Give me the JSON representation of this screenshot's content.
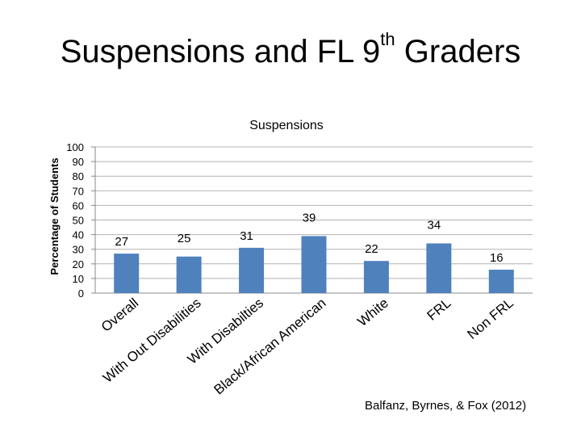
{
  "slide": {
    "title_main": "Suspensions and FL 9",
    "title_sup": "th",
    "title_end": " Graders",
    "source": "Balfanz, Byrnes, & Fox (2012)"
  },
  "chart_data": {
    "type": "bar",
    "title": "Suspensions",
    "ylabel": "Percentage of Students",
    "xlabel": "",
    "ylim": [
      0,
      100
    ],
    "yticks": [
      0,
      10,
      20,
      30,
      40,
      50,
      60,
      70,
      80,
      90,
      100
    ],
    "grid": true,
    "legend": "none",
    "color": "#4f81bd",
    "categories": [
      "Overall",
      "With Out Disabilities",
      "With Disabilties",
      "Black/African American",
      "White",
      "FRL",
      "Non FRL"
    ],
    "values": [
      27,
      25,
      31,
      39,
      22,
      34,
      16
    ]
  }
}
